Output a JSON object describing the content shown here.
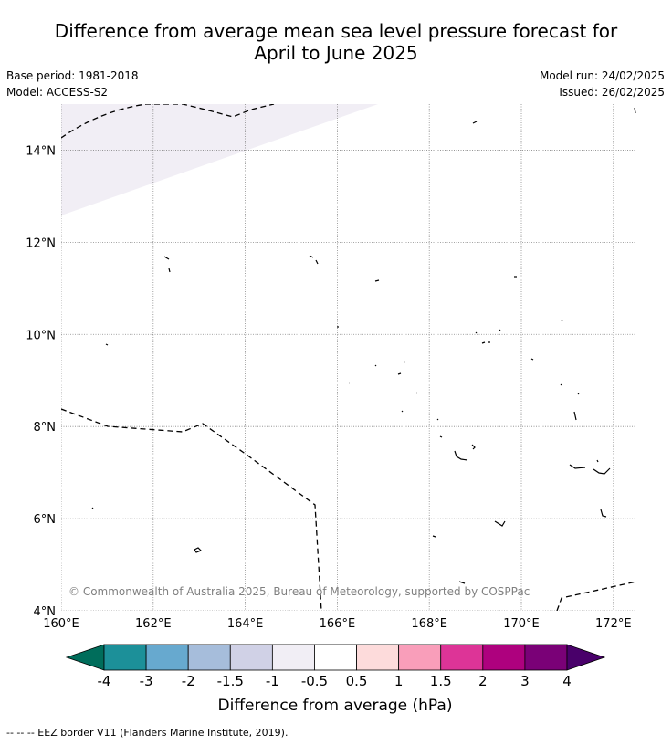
{
  "title": {
    "line1": "Difference from average mean sea level pressure forecast for",
    "line2": "April to June 2025"
  },
  "meta": {
    "base_period": "Base period: 1981-2018",
    "model": "Model: ACCESS-S2",
    "model_run": "Model run: 24/02/2025",
    "issued": "Issued: 26/02/2025"
  },
  "map": {
    "lon_range": [
      160,
      172.5
    ],
    "lat_range": [
      4,
      15
    ],
    "x_ticks": [
      "160°E",
      "162°E",
      "164°E",
      "166°E",
      "168°E",
      "170°E",
      "172°E"
    ],
    "y_ticks": [
      "4°N",
      "6°N",
      "8°N",
      "10°N",
      "12°N",
      "14°N"
    ],
    "copyright": "© Commonwealth of Australia 2025, Bureau of Meteorology, supported by COSPPac",
    "anomaly_fill_color": "#f1eef5",
    "grid": true
  },
  "colorbar": {
    "label": "Difference from average (hPa)",
    "tick_labels": [
      "-4",
      "-3",
      "-2",
      "-1.5",
      "-1",
      "-0.5",
      "0.5",
      "1",
      "1.5",
      "2",
      "3",
      "4"
    ],
    "colors": [
      "#006d5b",
      "#1c9099",
      "#67a9cf",
      "#a6bddb",
      "#d0d1e6",
      "#f1eef5",
      "#ffffff",
      "#fddbdb",
      "#f99eba",
      "#dd3497",
      "#ae017e",
      "#7a0177",
      "#49006a"
    ]
  },
  "footer": {
    "legend_text": "--  --  -- EEZ border V11 (Flanders Marine Institute, 2019)."
  }
}
